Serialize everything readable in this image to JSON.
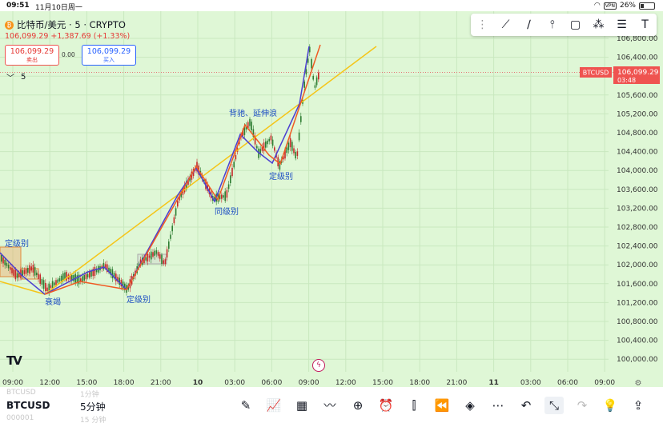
{
  "status_bar": {
    "time": "09:51",
    "date": "11月10日周一",
    "vpn": "VPN",
    "battery": "26%"
  },
  "symbol": {
    "title": "比特币/美元 · 5 · CRYPTO",
    "coin_glyph": "₿",
    "price_line": "106,099.29 +1,387.69 (+1.33%)"
  },
  "order": {
    "sell_price": "106,099.29",
    "sell_label": "卖出",
    "spread": "0.00",
    "buy_price": "106,099.29",
    "buy_label": "买入"
  },
  "indicator_count": "5",
  "toolbar_top_icons": [
    "drag-handle-icon",
    "trend-line-icon",
    "ray-line-icon",
    "vertical-line-icon",
    "rectangle-icon",
    "pattern-icon",
    "fib-icon",
    "text-icon"
  ],
  "price_axis": [
    "106,800.00",
    "106,400.00",
    "106,000.00",
    "105,600.00",
    "105,200.00",
    "104,800.00",
    "104,400.00",
    "104,000.00",
    "103,600.00",
    "103,200.00",
    "102,800.00",
    "102,400.00",
    "102,000.00",
    "101,600.00",
    "101,200.00",
    "100,800.00",
    "100,400.00",
    "100,000.00"
  ],
  "last_price_tag": {
    "symbol": "BTCUSD",
    "price": "106,099.29",
    "countdown": "03:48"
  },
  "time_axis": [
    "09:00",
    "12:00",
    "15:00",
    "18:00",
    "21:00",
    "10",
    "03:00",
    "06:00",
    "09:00",
    "12:00",
    "15:00",
    "18:00",
    "21:00",
    "11",
    "03:00",
    "06:00",
    "09:00"
  ],
  "annotations": {
    "a1": "定级别",
    "a2": "衰竭",
    "a3": "定级别",
    "a4": "同级别",
    "a5": "背驰、延伸浪",
    "a6": "定级别"
  },
  "logo": "TV",
  "bottom": {
    "symbol": "BTCUSD",
    "interval": "5分钟",
    "ghost_symbol_top": "BTCUSD",
    "ghost_interval_top": "1分钟",
    "ghost_symbol_bottom": "000001",
    "ghost_interval_bottom": "15 分钟"
  },
  "bottom_icons": [
    "draw-icon",
    "indicators-icon",
    "layout-icon",
    "compare-icon",
    "add-icon",
    "alert-icon",
    "candle-type-icon",
    "replay-icon",
    "layers-icon",
    "more-icon",
    "undo-icon",
    "collapse-icon",
    "redo-icon",
    "bulb-icon",
    "share-icon"
  ],
  "colors": {
    "bg": "#dff7d6",
    "up": "#2e7d32",
    "down": "#c62828",
    "zz": "#4b3fd1",
    "orange": "#f05a23",
    "yellow": "#f5c518"
  }
}
